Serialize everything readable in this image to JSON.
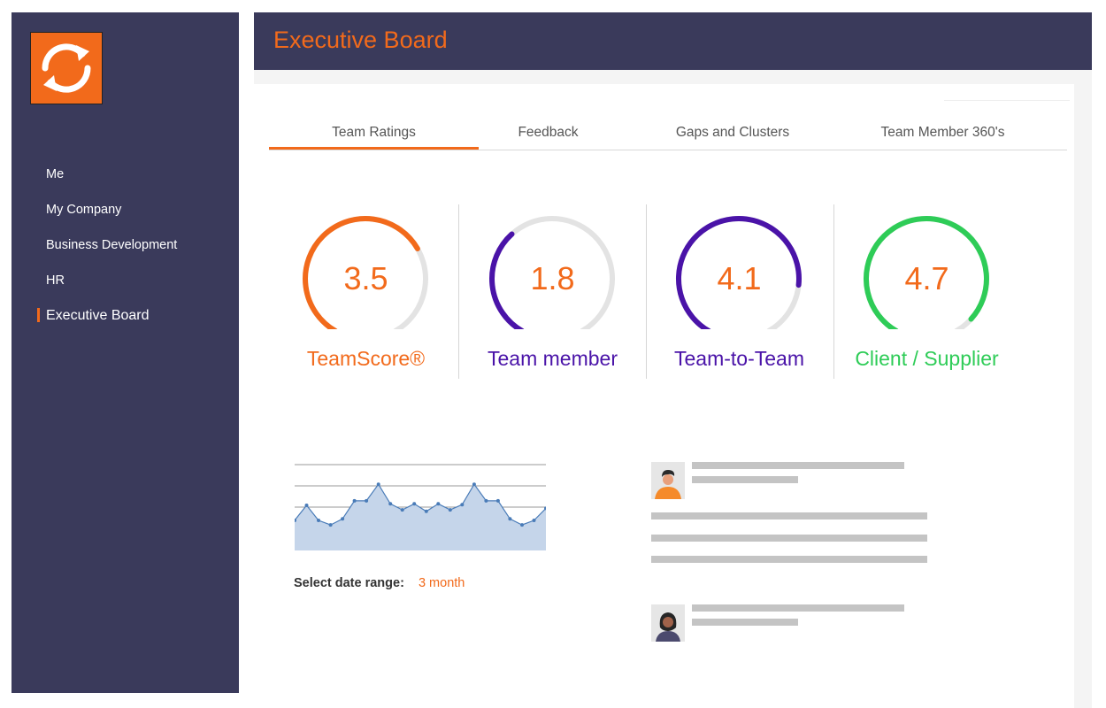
{
  "app": {
    "logo_icon": "refresh-arrows-icon",
    "brand_color": "#f26a1b",
    "nav_color": "#3a3a5b"
  },
  "sidebar": {
    "items": [
      {
        "label": "Me"
      },
      {
        "label": "My Company"
      },
      {
        "label": "Business Development"
      },
      {
        "label": "HR"
      },
      {
        "label": "Executive Board",
        "active": true
      }
    ]
  },
  "header": {
    "title": "Executive Board"
  },
  "tabs": [
    {
      "label": "Team Ratings",
      "active": true
    },
    {
      "label": "Feedback"
    },
    {
      "label": "Gaps and Clusters"
    },
    {
      "label": "Team Member 360's"
    }
  ],
  "gauges": [
    {
      "value": "3.5",
      "label": "TeamScore®",
      "color": "#f26a1b",
      "fill": 0.7
    },
    {
      "value": "1.8",
      "label": "Team member",
      "color": "#4a13a8",
      "fill": 0.36
    },
    {
      "value": "4.1",
      "label": "Team-to-Team",
      "color": "#4a13a8",
      "fill": 0.82
    },
    {
      "value": "4.7",
      "label": "Client / Supplier",
      "color": "#2ecc57",
      "fill": 0.94
    }
  ],
  "trend": {
    "values": [
      4,
      6,
      4,
      3.4,
      4.2,
      6.6,
      6.6,
      8.8,
      6.2,
      5.4,
      6.2,
      5.2,
      6.2,
      5.4,
      6.1,
      8.8,
      6.6,
      6.6,
      4.2,
      3.4,
      4,
      5.6
    ],
    "ylim": [
      0,
      12
    ]
  },
  "date_range": {
    "label": "Select date range:",
    "value": "3 month"
  },
  "feed": [
    {
      "avatar_icon": "person-avatar-icon",
      "lines": 2,
      "body_lines": 3
    },
    {
      "avatar_icon": "person-avatar-icon",
      "lines": 2,
      "body_lines": 0
    }
  ]
}
